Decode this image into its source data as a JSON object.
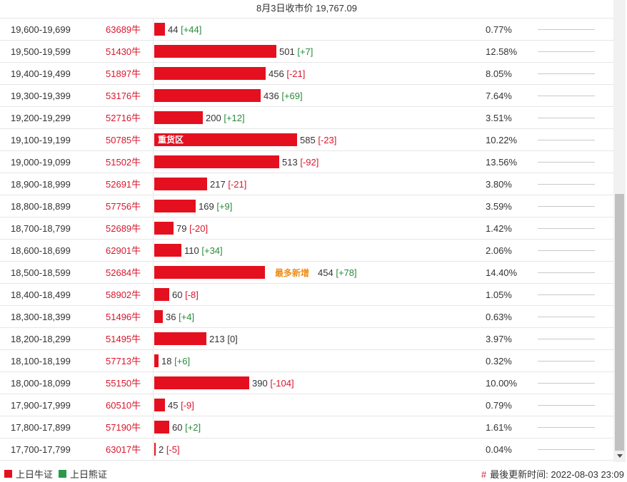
{
  "title": "8月3日收市价 19,767.09",
  "colors": {
    "bull": "#e4101f",
    "bear": "#2a9a4a",
    "up": "#2a8a3a",
    "down": "#d9172c",
    "highlight": "#f08c16"
  },
  "rows": [
    {
      "range": "19,600-19,699",
      "code": "63689牛",
      "value": "44",
      "change": "[+44]",
      "dir": "up",
      "pct": "0.77%",
      "bar": 44
    },
    {
      "range": "19,500-19,599",
      "code": "51430牛",
      "value": "501",
      "change": "[+7]",
      "dir": "up",
      "pct": "12.58%",
      "bar": 501
    },
    {
      "range": "19,400-19,499",
      "code": "51897牛",
      "value": "456",
      "change": "[-21]",
      "dir": "down",
      "pct": "8.05%",
      "bar": 456
    },
    {
      "range": "19,300-19,399",
      "code": "53176牛",
      "value": "436",
      "change": "[+69]",
      "dir": "up",
      "pct": "7.64%",
      "bar": 436
    },
    {
      "range": "19,200-19,299",
      "code": "52716牛",
      "value": "200",
      "change": "[+12]",
      "dir": "up",
      "pct": "3.51%",
      "bar": 200
    },
    {
      "range": "19,100-19,199",
      "code": "50785牛",
      "value": "585",
      "change": "[-23]",
      "dir": "down",
      "pct": "10.22%",
      "bar": 585,
      "zone": "重货区"
    },
    {
      "range": "19,000-19,099",
      "code": "51502牛",
      "value": "513",
      "change": "[-92]",
      "dir": "down",
      "pct": "13.56%",
      "bar": 513
    },
    {
      "range": "18,900-18,999",
      "code": "52691牛",
      "value": "217",
      "change": "[-21]",
      "dir": "down",
      "pct": "3.80%",
      "bar": 217
    },
    {
      "range": "18,800-18,899",
      "code": "57756牛",
      "value": "169",
      "change": "[+9]",
      "dir": "up",
      "pct": "3.59%",
      "bar": 169
    },
    {
      "range": "18,700-18,799",
      "code": "52689牛",
      "value": "79",
      "change": "[-20]",
      "dir": "down",
      "pct": "1.42%",
      "bar": 79
    },
    {
      "range": "18,600-18,699",
      "code": "62901牛",
      "value": "110",
      "change": "[+34]",
      "dir": "up",
      "pct": "2.06%",
      "bar": 110
    },
    {
      "range": "18,500-18,599",
      "code": "52684牛",
      "value": "454",
      "change": "[+78]",
      "dir": "up",
      "pct": "14.40%",
      "bar": 454,
      "tag": "最多新增"
    },
    {
      "range": "18,400-18,499",
      "code": "58902牛",
      "value": "60",
      "change": "[-8]",
      "dir": "down",
      "pct": "1.05%",
      "bar": 60
    },
    {
      "range": "18,300-18,399",
      "code": "51496牛",
      "value": "36",
      "change": "[+4]",
      "dir": "up",
      "pct": "0.63%",
      "bar": 36
    },
    {
      "range": "18,200-18,299",
      "code": "51495牛",
      "value": "213",
      "change": "[0]",
      "dir": "flat",
      "pct": "3.97%",
      "bar": 213
    },
    {
      "range": "18,100-18,199",
      "code": "57713牛",
      "value": "18",
      "change": "[+6]",
      "dir": "up",
      "pct": "0.32%",
      "bar": 18
    },
    {
      "range": "18,000-18,099",
      "code": "55150牛",
      "value": "390",
      "change": "[-104]",
      "dir": "down",
      "pct": "10.00%",
      "bar": 390
    },
    {
      "range": "17,900-17,999",
      "code": "60510牛",
      "value": "45",
      "change": "[-9]",
      "dir": "down",
      "pct": "0.79%",
      "bar": 45
    },
    {
      "range": "17,800-17,899",
      "code": "57190牛",
      "value": "60",
      "change": "[+2]",
      "dir": "up",
      "pct": "1.61%",
      "bar": 60
    },
    {
      "range": "17,700-17,799",
      "code": "63017牛",
      "value": "2",
      "change": "[-5]",
      "dir": "down",
      "pct": "0.04%",
      "bar": 2
    }
  ],
  "legend": {
    "bull": "上日牛证",
    "bear": "上日熊证"
  },
  "updated": {
    "label": "最後更新时间:",
    "time": "2022-08-03 23:09"
  }
}
